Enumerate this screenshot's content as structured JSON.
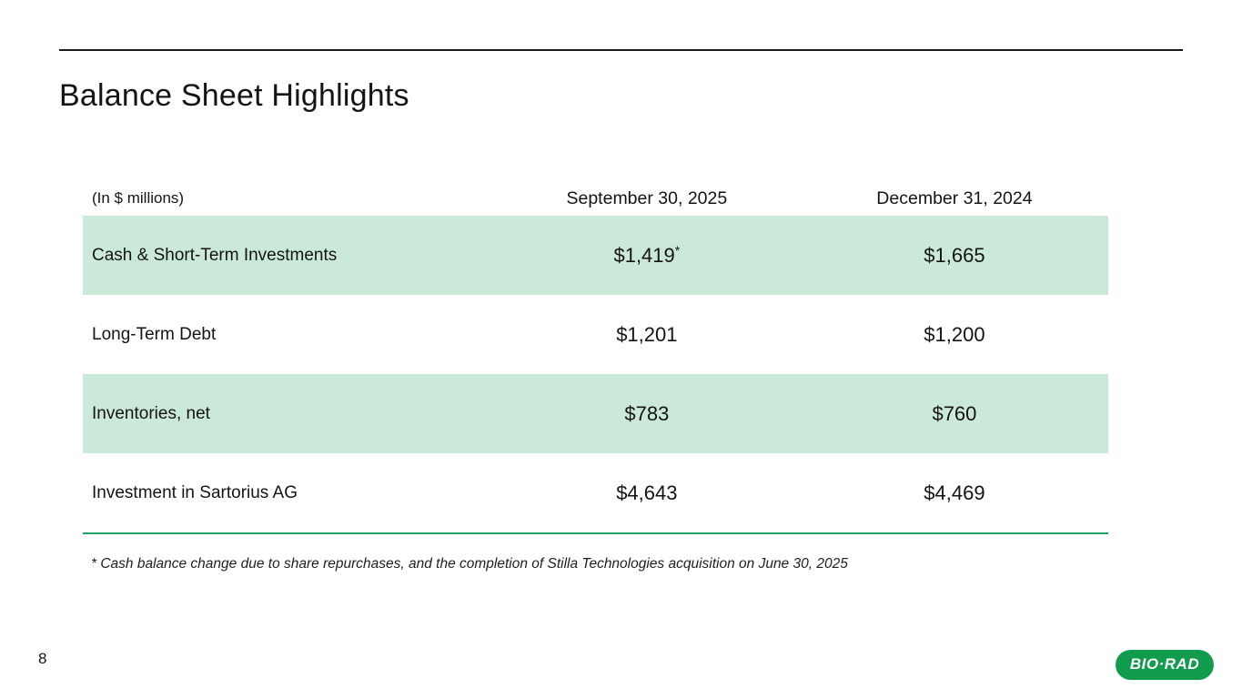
{
  "slide": {
    "title": "Balance Sheet Highlights",
    "page_number": "8",
    "footnote": "* Cash balance change due to share repurchases, and the completion of Stilla Technologies acquisition on June 30, 2025",
    "brand": "BIO·RAD"
  },
  "colors": {
    "row_highlight": "#cbe9d9",
    "table_bottom_rule": "#1ca45f",
    "logo_green": "#119c4d",
    "top_rule": "#1a1a1a",
    "text": "#141414"
  },
  "table": {
    "unit_label": "(In $ millions)",
    "columns": [
      "September 30, 2025",
      "December 31, 2024"
    ],
    "rows": [
      {
        "label": "Cash & Short-Term Investments",
        "col1": "$1,419",
        "col1_sup": "*",
        "col2": "$1,665"
      },
      {
        "label": "Long-Term Debt",
        "col1": "$1,201",
        "col2": "$1,200"
      },
      {
        "label": "Inventories, net",
        "col1": "$783",
        "col2": "$760"
      },
      {
        "label": "Investment in Sartorius AG",
        "col1": "$4,643",
        "col2": "$4,469"
      }
    ]
  },
  "chart_data": {
    "type": "table",
    "title": "Balance Sheet Highlights",
    "unit": "$ millions",
    "categories": [
      "Cash & Short-Term Investments",
      "Long-Term Debt",
      "Inventories, net",
      "Investment in Sartorius AG"
    ],
    "series": [
      {
        "name": "September 30, 2025",
        "values": [
          1419,
          1201,
          783,
          4643
        ]
      },
      {
        "name": "December 31, 2024",
        "values": [
          1665,
          1200,
          760,
          4469
        ]
      }
    ]
  }
}
